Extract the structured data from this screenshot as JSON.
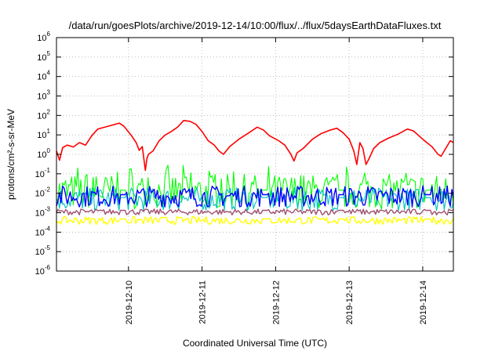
{
  "chart_data": {
    "type": "line",
    "title": "/data/run/goesPlots/archive/2019-12-14/10:00/flux/../flux/5daysEarthDataFluxes.txt",
    "xlabel": "Coordinated Universal Time (UTC)",
    "ylabel": "protons/cm²-s-sr-MeV",
    "yscale": "log",
    "ylim": [
      1e-06,
      1000000.0
    ],
    "xlim": [
      "2019-12-09T00:30",
      "2019-12-14T10:00"
    ],
    "grid": true,
    "legend": "none",
    "x_ticks": [
      "2019-12-10",
      "2019-12-11",
      "2019-12-12",
      "2019-12-13",
      "2019-12-14"
    ],
    "y_ticks": [
      {
        "base": "10",
        "exp": "-6",
        "value": 1e-06
      },
      {
        "base": "10",
        "exp": "-5",
        "value": 1e-05
      },
      {
        "base": "10",
        "exp": "-4",
        "value": 0.0001
      },
      {
        "base": "10",
        "exp": "-3",
        "value": 0.001
      },
      {
        "base": "10",
        "exp": "-2",
        "value": 0.01
      },
      {
        "base": "10",
        "exp": "-1",
        "value": 0.1
      },
      {
        "base": "10",
        "exp": "0",
        "value": 1
      },
      {
        "base": "10",
        "exp": "1",
        "value": 10
      },
      {
        "base": "10",
        "exp": "2",
        "value": 100
      },
      {
        "base": "10",
        "exp": "3",
        "value": 1000
      },
      {
        "base": "10",
        "exp": "4",
        "value": 10000
      },
      {
        "base": "10",
        "exp": "5",
        "value": 100000
      },
      {
        "base": "10",
        "exp": "6",
        "value": 1000000
      }
    ],
    "series": [
      {
        "color": "#ff0000",
        "width": 1.6,
        "points": [
          [
            "2019-12-09T00:30",
            1.5
          ],
          [
            "2019-12-09T01:30",
            0.5
          ],
          [
            "2019-12-09T02:30",
            2.2
          ],
          [
            "2019-12-09T04:00",
            3.0
          ],
          [
            "2019-12-09T06:00",
            2.4
          ],
          [
            "2019-12-09T08:00",
            4.0
          ],
          [
            "2019-12-09T10:00",
            3.0
          ],
          [
            "2019-12-09T12:00",
            9.0
          ],
          [
            "2019-12-09T14:00",
            20
          ],
          [
            "2019-12-09T17:00",
            27
          ],
          [
            "2019-12-09T21:00",
            40
          ],
          [
            "2019-12-09T22:30",
            28
          ],
          [
            "2019-12-10T01:00",
            9
          ],
          [
            "2019-12-10T02:30",
            4
          ],
          [
            "2019-12-10T03:30",
            1.6
          ],
          [
            "2019-12-10T04:30",
            2.5
          ],
          [
            "2019-12-10T05:30",
            0.15
          ],
          [
            "2019-12-10T06:00",
            0.6
          ],
          [
            "2019-12-10T06:30",
            1.0
          ],
          [
            "2019-12-10T08:00",
            1.5
          ],
          [
            "2019-12-10T10:00",
            5
          ],
          [
            "2019-12-10T12:00",
            10
          ],
          [
            "2019-12-10T14:00",
            15
          ],
          [
            "2019-12-10T16:00",
            25
          ],
          [
            "2019-12-10T18:00",
            55
          ],
          [
            "2019-12-10T20:00",
            50
          ],
          [
            "2019-12-10T22:00",
            35
          ],
          [
            "2019-12-11T00:00",
            15
          ],
          [
            "2019-12-11T02:00",
            5
          ],
          [
            "2019-12-11T04:00",
            3
          ],
          [
            "2019-12-11T05:30",
            1.5
          ],
          [
            "2019-12-11T07:00",
            1.0
          ],
          [
            "2019-12-11T09:00",
            2.5
          ],
          [
            "2019-12-11T12:00",
            6
          ],
          [
            "2019-12-11T15:00",
            12
          ],
          [
            "2019-12-11T18:00",
            25
          ],
          [
            "2019-12-11T20:00",
            18
          ],
          [
            "2019-12-11T22:00",
            9
          ],
          [
            "2019-12-12T01:00",
            5
          ],
          [
            "2019-12-12T03:00",
            3
          ],
          [
            "2019-12-12T05:00",
            1.0
          ],
          [
            "2019-12-12T06:00",
            0.45
          ],
          [
            "2019-12-12T07:00",
            1.2
          ],
          [
            "2019-12-12T09:00",
            2.0
          ],
          [
            "2019-12-12T12:00",
            6
          ],
          [
            "2019-12-12T15:00",
            12
          ],
          [
            "2019-12-12T18:00",
            18
          ],
          [
            "2019-12-12T20:00",
            22
          ],
          [
            "2019-12-12T22:00",
            13
          ],
          [
            "2019-12-13T00:00",
            6
          ],
          [
            "2019-12-13T01:30",
            1.5
          ],
          [
            "2019-12-13T02:30",
            0.3
          ],
          [
            "2019-12-13T03:30",
            4
          ],
          [
            "2019-12-13T04:30",
            2
          ],
          [
            "2019-12-13T05:30",
            0.3
          ],
          [
            "2019-12-13T06:30",
            0.6
          ],
          [
            "2019-12-13T08:00",
            2
          ],
          [
            "2019-12-13T10:00",
            4
          ],
          [
            "2019-12-13T13:00",
            7
          ],
          [
            "2019-12-13T16:00",
            11
          ],
          [
            "2019-12-13T19:00",
            20
          ],
          [
            "2019-12-13T21:00",
            16
          ],
          [
            "2019-12-14T00:00",
            6
          ],
          [
            "2019-12-14T03:00",
            2.5
          ],
          [
            "2019-12-14T05:00",
            1.0
          ],
          [
            "2019-12-14T06:00",
            0.8
          ],
          [
            "2019-12-14T07:30",
            2.0
          ],
          [
            "2019-12-14T09:00",
            5
          ],
          [
            "2019-12-14T10:00",
            4
          ]
        ]
      },
      {
        "color": "#00ff00",
        "width": 1.1,
        "base": 0.012,
        "spread": 0.9,
        "points": []
      },
      {
        "color": "#00c0c0",
        "width": 1.1,
        "base": 0.005,
        "spread": 0.6,
        "points": []
      },
      {
        "color": "#0000ff",
        "width": 1.4,
        "base": 0.007,
        "spread": 0.55,
        "points": []
      },
      {
        "color": "#a05070",
        "width": 1.4,
        "base": 0.0011,
        "spread": 0.15,
        "points": []
      },
      {
        "color": "#ffff00",
        "width": 1.4,
        "base": 0.0004,
        "spread": 0.2,
        "points": []
      }
    ]
  }
}
